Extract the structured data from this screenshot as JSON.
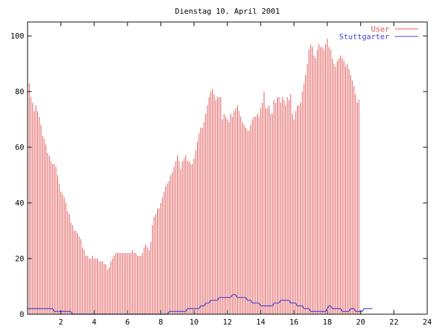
{
  "chart_data": {
    "type": "bar",
    "title": "Dienstag 10. April 2001",
    "xlabel": "",
    "ylabel": "",
    "xlim": [
      0,
      24
    ],
    "ylim": [
      0,
      105
    ],
    "x_ticks": [
      2,
      4,
      6,
      8,
      10,
      12,
      14,
      16,
      18,
      20,
      22,
      24
    ],
    "y_ticks": [
      0,
      20,
      40,
      60,
      80,
      100
    ],
    "grid": false,
    "legend_position": "top-right",
    "x_step_hours": 0.1,
    "series": [
      {
        "name": "User",
        "style": "impulses",
        "color": "#e05050",
        "values": [
          87,
          83,
          78,
          76,
          73,
          75,
          73,
          71,
          68,
          64,
          63,
          61,
          58,
          57,
          55,
          54,
          54,
          53,
          50,
          47,
          44,
          43,
          42,
          40,
          37,
          36,
          33,
          32,
          30,
          30,
          29,
          28,
          27,
          24,
          23,
          21,
          21,
          20,
          20,
          21,
          20,
          20,
          20,
          19,
          19,
          19,
          18,
          18,
          16,
          17,
          19,
          20,
          21,
          22,
          22,
          22,
          22,
          22,
          22,
          22,
          22,
          22,
          22,
          23,
          22,
          22,
          21,
          21,
          21,
          22,
          24,
          25,
          24,
          23,
          26,
          32,
          35,
          36,
          38,
          38,
          40,
          42,
          44,
          46,
          47,
          48,
          50,
          51,
          53,
          55,
          57,
          55,
          52,
          55,
          56,
          57,
          55,
          55,
          54,
          54,
          56,
          59,
          62,
          65,
          67,
          67,
          69,
          72,
          75,
          78,
          80,
          81,
          79,
          77,
          78,
          78,
          78,
          70,
          72,
          71,
          70,
          69,
          72,
          71,
          73,
          74,
          75,
          73,
          71,
          69,
          68,
          67,
          66,
          66,
          68,
          70,
          71,
          71,
          72,
          71,
          74,
          76,
          80,
          74,
          74,
          75,
          72,
          72,
          77,
          76,
          78,
          78,
          76,
          78,
          77,
          75,
          78,
          77,
          79,
          72,
          70,
          73,
          75,
          75,
          76,
          80,
          83,
          86,
          90,
          95,
          97,
          96,
          93,
          92,
          95,
          97,
          96,
          96,
          95,
          97,
          99,
          96,
          95,
          92,
          90,
          89,
          91,
          92,
          93,
          92,
          91,
          89,
          90,
          88,
          86,
          84,
          82,
          79,
          76,
          77
        ]
      },
      {
        "name": "Stuttgarter",
        "style": "lines",
        "color": "#4040d0",
        "values": [
          2,
          2,
          2,
          2,
          2,
          2,
          2,
          2,
          2,
          2,
          2,
          2,
          2,
          2,
          2,
          2,
          1,
          1,
          1,
          1,
          1,
          1,
          1,
          1,
          1,
          1,
          1,
          0,
          0,
          0,
          0,
          0,
          0,
          0,
          0,
          0,
          0,
          0,
          0,
          0,
          0,
          0,
          0,
          0,
          0,
          0,
          0,
          0,
          0,
          0,
          0,
          0,
          0,
          0,
          0,
          0,
          0,
          0,
          0,
          0,
          0,
          0,
          0,
          0,
          0,
          0,
          0,
          0,
          0,
          0,
          0,
          0,
          0,
          0,
          0,
          0,
          0,
          0,
          0,
          0,
          0,
          0,
          0,
          0,
          0,
          1,
          1,
          1,
          1,
          1,
          1,
          1,
          1,
          1,
          1,
          1,
          2,
          2,
          2,
          2,
          2,
          2,
          2,
          2,
          3,
          3,
          3,
          4,
          4,
          4,
          5,
          5,
          5,
          5,
          5,
          6,
          6,
          6,
          6,
          6,
          6,
          6,
          6,
          7,
          7,
          7,
          6,
          6,
          6,
          6,
          6,
          6,
          5,
          5,
          5,
          4,
          4,
          4,
          4,
          4,
          3,
          3,
          3,
          3,
          3,
          3,
          3,
          3,
          4,
          4,
          4,
          4,
          5,
          5,
          5,
          5,
          5,
          5,
          4,
          4,
          4,
          4,
          3,
          3,
          3,
          3,
          2,
          2,
          2,
          2,
          1,
          1,
          1,
          1,
          1,
          1,
          1,
          1,
          1,
          1,
          2,
          3,
          3,
          2,
          2,
          2,
          2,
          2,
          2,
          1,
          1,
          1,
          1,
          1,
          2,
          2,
          2,
          1,
          1,
          1,
          1,
          1,
          2,
          2,
          2,
          2,
          2,
          2
        ]
      }
    ]
  }
}
